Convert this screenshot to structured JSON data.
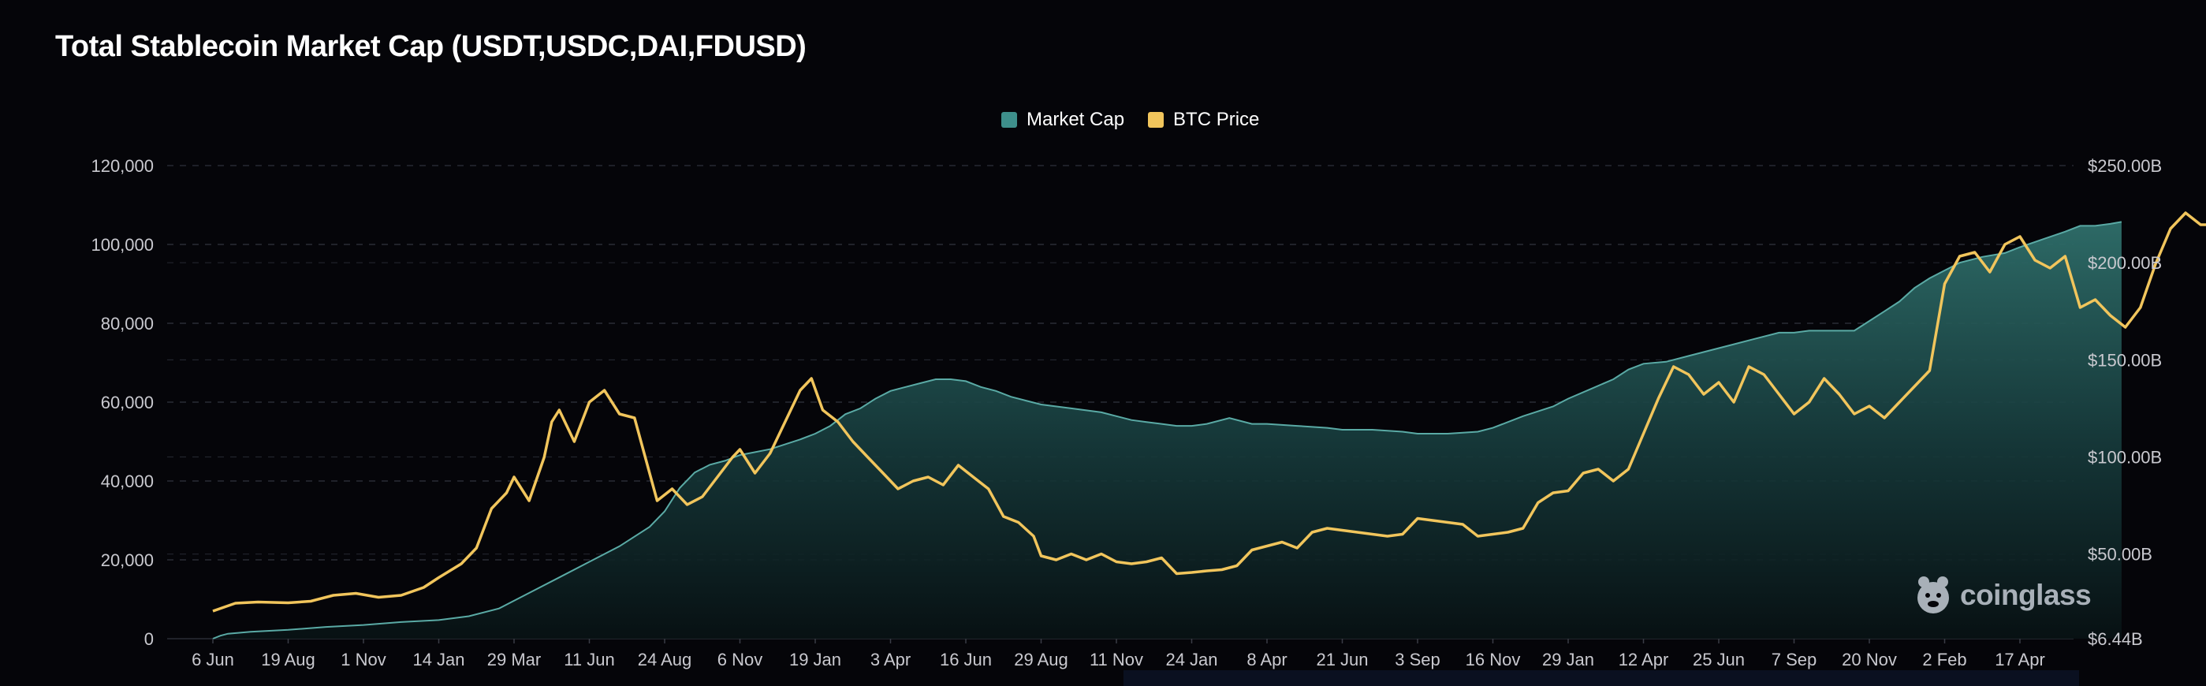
{
  "title": "Total Stablecoin Market Cap (USDT,USDC,DAI,FDUSD)",
  "legend": [
    {
      "label": "Market Cap",
      "color": "#3e8f8b"
    },
    {
      "label": "BTC Price",
      "color": "#f1c55c"
    }
  ],
  "watermark": {
    "text": "coinglass",
    "icon": "coinglass-logo-icon"
  },
  "chart_data": {
    "type": "area",
    "x_tick_labels": [
      "6 Jun",
      "19 Aug",
      "1 Nov",
      "14 Jan",
      "29 Mar",
      "11 Jun",
      "24 Aug",
      "6 Nov",
      "19 Jan",
      "3 Apr",
      "16 Jun",
      "29 Aug",
      "11 Nov",
      "24 Jan",
      "8 Apr",
      "21 Jun",
      "3 Sep",
      "16 Nov",
      "29 Jan",
      "12 Apr",
      "25 Jun",
      "7 Sep",
      "20 Nov",
      "2 Feb",
      "17 Apr"
    ],
    "left_axis": {
      "ticks": [
        0,
        20000,
        40000,
        60000,
        80000,
        100000,
        120000
      ],
      "tick_labels": [
        "0",
        "20,000",
        "40,000",
        "60,000",
        "80,000",
        "100,000",
        "120,000"
      ],
      "range": [
        0,
        120000
      ]
    },
    "right_axis": {
      "tick_labels": [
        "$6.44B",
        "$50.00B",
        "$100.00B",
        "$150.00B",
        "$200.00B",
        "$250.00B"
      ],
      "ticks": [
        6.44,
        50,
        100,
        150,
        200,
        250
      ],
      "range": [
        6.44,
        250
      ]
    },
    "grid": true,
    "legend_position": "top-center",
    "series": [
      {
        "name": "Market Cap",
        "axis": "right",
        "color": "#3e8f8b",
        "style": "area",
        "points": [
          [
            0,
            6.44
          ],
          [
            0.1,
            8
          ],
          [
            0.2,
            9
          ],
          [
            0.5,
            10
          ],
          [
            1.0,
            11
          ],
          [
            1.5,
            12.5
          ],
          [
            2.0,
            13.5
          ],
          [
            2.5,
            15
          ],
          [
            3.0,
            16
          ],
          [
            3.4,
            18
          ],
          [
            3.8,
            22
          ],
          [
            4.2,
            30
          ],
          [
            4.6,
            38
          ],
          [
            5.0,
            46
          ],
          [
            5.4,
            54
          ],
          [
            5.8,
            64
          ],
          [
            6.0,
            72
          ],
          [
            6.2,
            84
          ],
          [
            6.4,
            92
          ],
          [
            6.6,
            96
          ],
          [
            6.8,
            98
          ],
          [
            7.0,
            101
          ],
          [
            7.4,
            104
          ],
          [
            7.8,
            109
          ],
          [
            8.0,
            112
          ],
          [
            8.2,
            116
          ],
          [
            8.4,
            122
          ],
          [
            8.6,
            125
          ],
          [
            8.8,
            130
          ],
          [
            9.0,
            134
          ],
          [
            9.2,
            136
          ],
          [
            9.4,
            138
          ],
          [
            9.6,
            140
          ],
          [
            9.8,
            140
          ],
          [
            10.0,
            139
          ],
          [
            10.2,
            136
          ],
          [
            10.4,
            134
          ],
          [
            10.6,
            131
          ],
          [
            10.8,
            129
          ],
          [
            11.0,
            127
          ],
          [
            11.4,
            125
          ],
          [
            11.8,
            123
          ],
          [
            12.0,
            121
          ],
          [
            12.2,
            119
          ],
          [
            12.4,
            118
          ],
          [
            12.6,
            117
          ],
          [
            12.8,
            116
          ],
          [
            13.0,
            116
          ],
          [
            13.2,
            117
          ],
          [
            13.5,
            120
          ],
          [
            13.8,
            117
          ],
          [
            14.0,
            117
          ],
          [
            14.4,
            116
          ],
          [
            14.8,
            115
          ],
          [
            15.0,
            114
          ],
          [
            15.4,
            114
          ],
          [
            15.8,
            113
          ],
          [
            16.0,
            112
          ],
          [
            16.4,
            112
          ],
          [
            16.8,
            113
          ],
          [
            17.0,
            115
          ],
          [
            17.4,
            121
          ],
          [
            17.8,
            126
          ],
          [
            18.0,
            130
          ],
          [
            18.3,
            135
          ],
          [
            18.6,
            140
          ],
          [
            18.8,
            145
          ],
          [
            19.0,
            148
          ],
          [
            19.3,
            149
          ],
          [
            19.6,
            152
          ],
          [
            19.9,
            155
          ],
          [
            20.2,
            158
          ],
          [
            20.5,
            161
          ],
          [
            20.8,
            164
          ],
          [
            21.0,
            164
          ],
          [
            21.2,
            165
          ],
          [
            21.5,
            165
          ],
          [
            21.8,
            165
          ],
          [
            22.0,
            170
          ],
          [
            22.2,
            175
          ],
          [
            22.4,
            180
          ],
          [
            22.6,
            187
          ],
          [
            22.8,
            192
          ],
          [
            23.0,
            196
          ],
          [
            23.2,
            200
          ],
          [
            23.5,
            203
          ],
          [
            23.8,
            205
          ],
          [
            24.0,
            208
          ],
          [
            24.3,
            212
          ],
          [
            24.6,
            216
          ],
          [
            24.8,
            219
          ],
          [
            25.0,
            219
          ],
          [
            25.2,
            220
          ],
          [
            25.35,
            221
          ]
        ]
      },
      {
        "name": "BTC Price",
        "axis": "left",
        "color": "#f1c55c",
        "style": "line",
        "points": [
          [
            0,
            7000
          ],
          [
            0.3,
            9000
          ],
          [
            0.6,
            9300
          ],
          [
            1.0,
            9100
          ],
          [
            1.3,
            9500
          ],
          [
            1.6,
            11000
          ],
          [
            1.9,
            11500
          ],
          [
            2.2,
            10500
          ],
          [
            2.5,
            11000
          ],
          [
            2.8,
            13000
          ],
          [
            3.0,
            15500
          ],
          [
            3.3,
            19000
          ],
          [
            3.5,
            23000
          ],
          [
            3.7,
            33000
          ],
          [
            3.9,
            37000
          ],
          [
            4.0,
            41000
          ],
          [
            4.2,
            35000
          ],
          [
            4.4,
            46000
          ],
          [
            4.5,
            55000
          ],
          [
            4.6,
            58000
          ],
          [
            4.8,
            50000
          ],
          [
            5.0,
            60000
          ],
          [
            5.2,
            63000
          ],
          [
            5.4,
            57000
          ],
          [
            5.6,
            56000
          ],
          [
            5.8,
            42000
          ],
          [
            5.9,
            35000
          ],
          [
            6.1,
            38000
          ],
          [
            6.3,
            34000
          ],
          [
            6.5,
            36000
          ],
          [
            6.7,
            41000
          ],
          [
            6.9,
            46000
          ],
          [
            7.0,
            48000
          ],
          [
            7.2,
            42000
          ],
          [
            7.4,
            47000
          ],
          [
            7.6,
            55000
          ],
          [
            7.8,
            63000
          ],
          [
            7.95,
            66000
          ],
          [
            8.1,
            58000
          ],
          [
            8.3,
            55000
          ],
          [
            8.5,
            50000
          ],
          [
            8.7,
            46000
          ],
          [
            8.9,
            42000
          ],
          [
            9.1,
            38000
          ],
          [
            9.3,
            40000
          ],
          [
            9.5,
            41000
          ],
          [
            9.7,
            39000
          ],
          [
            9.9,
            44000
          ],
          [
            10.1,
            41000
          ],
          [
            10.3,
            38000
          ],
          [
            10.5,
            31000
          ],
          [
            10.7,
            29500
          ],
          [
            10.9,
            26000
          ],
          [
            11.0,
            21000
          ],
          [
            11.2,
            20000
          ],
          [
            11.4,
            21500
          ],
          [
            11.6,
            20000
          ],
          [
            11.8,
            21500
          ],
          [
            12.0,
            19500
          ],
          [
            12.2,
            19000
          ],
          [
            12.4,
            19500
          ],
          [
            12.6,
            20500
          ],
          [
            12.8,
            16500
          ],
          [
            13.0,
            16800
          ],
          [
            13.2,
            17200
          ],
          [
            13.4,
            17500
          ],
          [
            13.6,
            18500
          ],
          [
            13.8,
            22500
          ],
          [
            14.0,
            23500
          ],
          [
            14.2,
            24500
          ],
          [
            14.4,
            23000
          ],
          [
            14.6,
            27000
          ],
          [
            14.8,
            28000
          ],
          [
            15.0,
            27500
          ],
          [
            15.2,
            27000
          ],
          [
            15.4,
            26500
          ],
          [
            15.6,
            26000
          ],
          [
            15.8,
            26500
          ],
          [
            16.0,
            30500
          ],
          [
            16.2,
            30000
          ],
          [
            16.4,
            29500
          ],
          [
            16.6,
            29000
          ],
          [
            16.8,
            26000
          ],
          [
            17.0,
            26500
          ],
          [
            17.2,
            27000
          ],
          [
            17.4,
            28000
          ],
          [
            17.6,
            34500
          ],
          [
            17.8,
            37000
          ],
          [
            18.0,
            37500
          ],
          [
            18.2,
            42000
          ],
          [
            18.4,
            43000
          ],
          [
            18.6,
            40000
          ],
          [
            18.8,
            43000
          ],
          [
            19.0,
            52000
          ],
          [
            19.2,
            61000
          ],
          [
            19.4,
            69000
          ],
          [
            19.6,
            67000
          ],
          [
            19.8,
            62000
          ],
          [
            20.0,
            65000
          ],
          [
            20.2,
            60000
          ],
          [
            20.4,
            69000
          ],
          [
            20.6,
            67000
          ],
          [
            20.8,
            62000
          ],
          [
            21.0,
            57000
          ],
          [
            21.2,
            60000
          ],
          [
            21.4,
            66000
          ],
          [
            21.6,
            62000
          ],
          [
            21.8,
            57000
          ],
          [
            22.0,
            59000
          ],
          [
            22.2,
            56000
          ],
          [
            22.4,
            60000
          ],
          [
            22.6,
            64000
          ],
          [
            22.8,
            68000
          ],
          [
            23.0,
            90000
          ],
          [
            23.2,
            97000
          ],
          [
            23.4,
            98000
          ],
          [
            23.6,
            93000
          ],
          [
            23.8,
            100000
          ],
          [
            24.0,
            102000
          ],
          [
            24.2,
            96000
          ],
          [
            24.4,
            94000
          ],
          [
            24.6,
            97000
          ],
          [
            24.8,
            84000
          ],
          [
            25.0,
            86000
          ],
          [
            25.2,
            82000
          ],
          [
            25.4,
            79000
          ],
          [
            25.6,
            84000
          ],
          [
            25.8,
            95000
          ],
          [
            26.0,
            104000
          ],
          [
            26.2,
            108000
          ],
          [
            26.4,
            105000
          ],
          [
            26.6,
            105000
          ]
        ]
      }
    ]
  }
}
